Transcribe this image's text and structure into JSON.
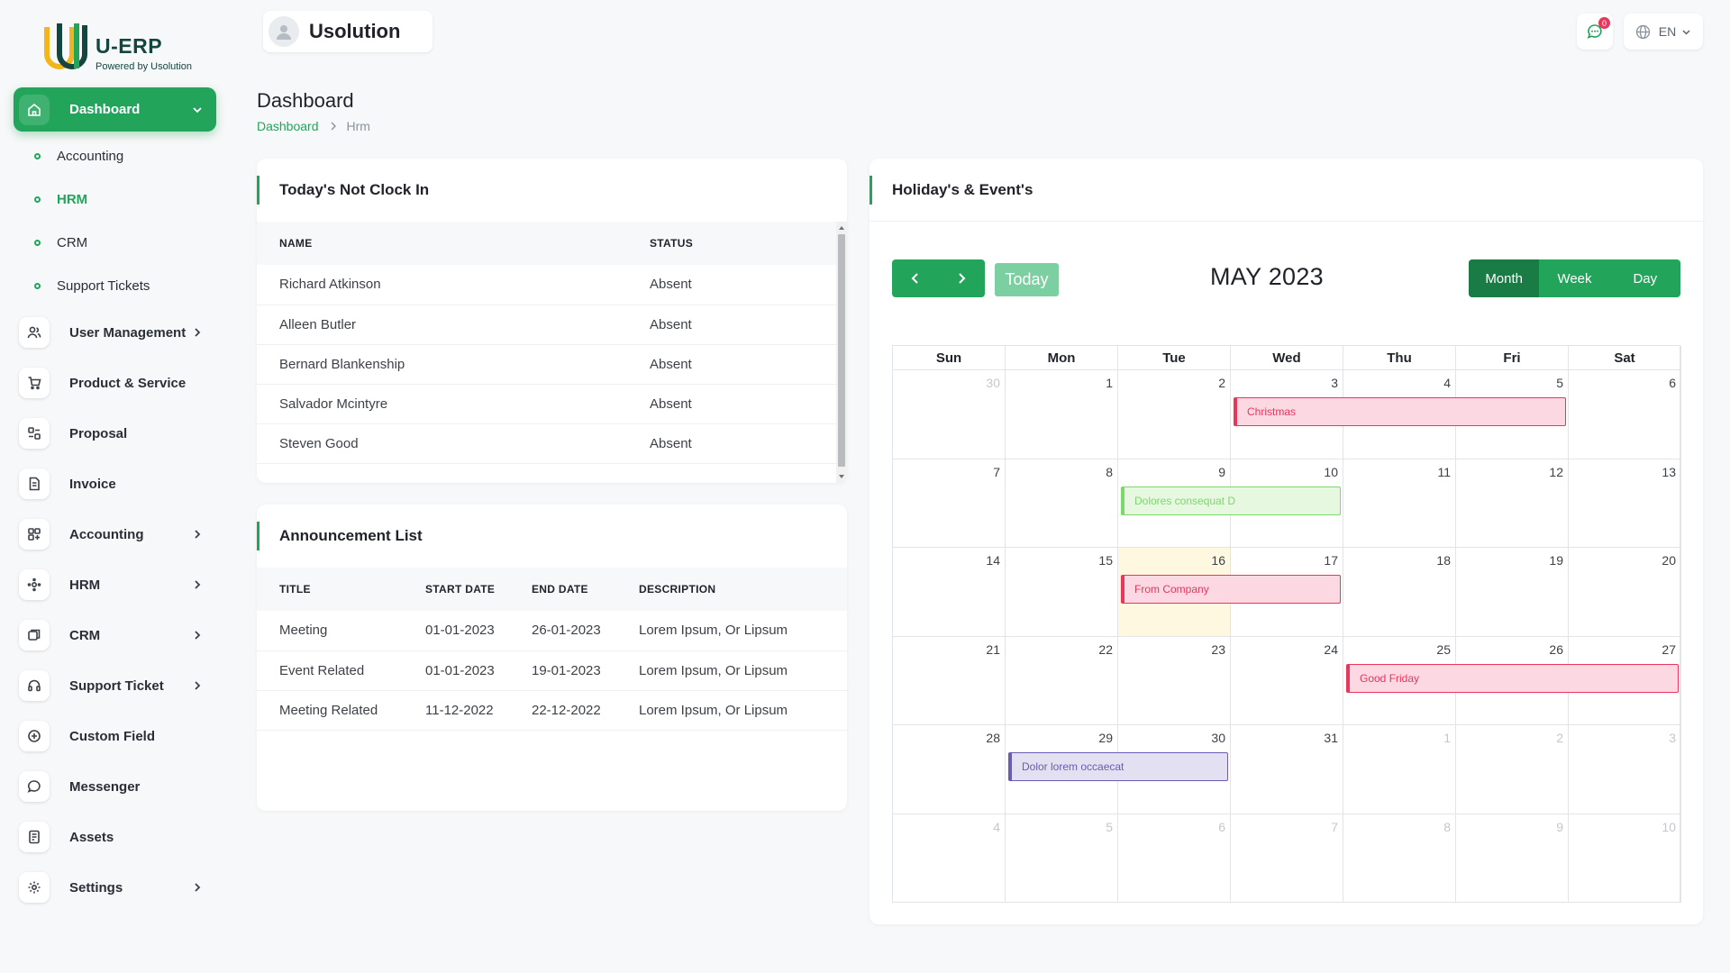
{
  "brand": {
    "title": "U-ERP",
    "subtitle": "Powered by Usolution"
  },
  "sidebar": {
    "dashboard": "Dashboard",
    "sub_items": [
      "Accounting",
      "HRM",
      "CRM",
      "Support Tickets"
    ],
    "items": [
      {
        "label": "User Management",
        "icon": "users-icon",
        "chevron": true
      },
      {
        "label": "Product & Service",
        "icon": "cart-icon",
        "chevron": false
      },
      {
        "label": "Proposal",
        "icon": "proposal-icon",
        "chevron": false
      },
      {
        "label": "Invoice",
        "icon": "invoice-icon",
        "chevron": false
      },
      {
        "label": "Accounting",
        "icon": "accounting-icon",
        "chevron": true
      },
      {
        "label": "HRM",
        "icon": "hrm-icon",
        "chevron": true
      },
      {
        "label": "CRM",
        "icon": "crm-icon",
        "chevron": true
      },
      {
        "label": "Support Ticket",
        "icon": "headset-icon",
        "chevron": true
      },
      {
        "label": "Custom Field",
        "icon": "plus-circle-icon",
        "chevron": false
      },
      {
        "label": "Messenger",
        "icon": "chat-icon",
        "chevron": false
      },
      {
        "label": "Assets",
        "icon": "assets-icon",
        "chevron": false
      },
      {
        "label": "Settings",
        "icon": "gear-icon",
        "chevron": true
      }
    ]
  },
  "header": {
    "company": "Usolution",
    "notifications": "0",
    "language": "EN"
  },
  "page": {
    "title": "Dashboard",
    "breadcrumb": [
      "Dashboard",
      "Hrm"
    ]
  },
  "clock_in": {
    "title": "Today's Not Clock In",
    "columns": [
      "NAME",
      "STATUS"
    ],
    "rows": [
      [
        "Richard Atkinson",
        "Absent"
      ],
      [
        "Alleen Butler",
        "Absent"
      ],
      [
        "Bernard Blankenship",
        "Absent"
      ],
      [
        "Salvador Mcintyre",
        "Absent"
      ],
      [
        "Steven Good",
        "Absent"
      ]
    ]
  },
  "announcements": {
    "title": "Announcement List",
    "columns": [
      "TITLE",
      "START DATE",
      "END DATE",
      "DESCRIPTION"
    ],
    "rows": [
      [
        "Meeting",
        "01-01-2023",
        "26-01-2023",
        "Lorem Ipsum, Or Lipsum"
      ],
      [
        "Event Related",
        "01-01-2023",
        "19-01-2023",
        "Lorem Ipsum, Or Lipsum"
      ],
      [
        "Meeting Related",
        "11-12-2022",
        "22-12-2022",
        "Lorem Ipsum, Or Lipsum"
      ]
    ]
  },
  "calendar": {
    "title": "Holiday's & Event's",
    "today_label": "Today",
    "month_title": "MAY 2023",
    "views": [
      "Month",
      "Week",
      "Day"
    ],
    "active_view": "Month",
    "weekdays": [
      "Sun",
      "Mon",
      "Tue",
      "Wed",
      "Thu",
      "Fri",
      "Sat"
    ],
    "weeks": [
      [
        30,
        1,
        2,
        3,
        4,
        5,
        6
      ],
      [
        7,
        8,
        9,
        10,
        11,
        12,
        13
      ],
      [
        14,
        15,
        16,
        17,
        18,
        19,
        20
      ],
      [
        21,
        22,
        23,
        24,
        25,
        26,
        27
      ],
      [
        28,
        29,
        30,
        31,
        1,
        2,
        3
      ],
      [
        4,
        5,
        6,
        7,
        8,
        9,
        10
      ]
    ],
    "today_date": "2023-05-16",
    "events": [
      {
        "title": "Christmas",
        "start": "2023-05-03",
        "end": "2023-05-05",
        "color": "#e8365d",
        "bg": "#fcd9e2"
      },
      {
        "title": "Dolores consequat D",
        "start": "2023-05-09",
        "end": "2023-05-10",
        "color": "#7bd86a",
        "bg": "#e6f8df"
      },
      {
        "title": "From Company",
        "start": "2023-05-16",
        "end": "2023-05-17",
        "color": "#e8365d",
        "bg": "#fcd9e2"
      },
      {
        "title": "Good Friday",
        "start": "2023-05-25",
        "end": "2023-05-27",
        "color": "#e8365d",
        "bg": "#fcd9e2"
      },
      {
        "title": "Dolor lorem occaecat",
        "start": "2023-05-29",
        "end": "2023-05-30",
        "color": "#6a5bb5",
        "bg": "#e3e0f2"
      }
    ]
  },
  "colors": {
    "accent": "#22a55b",
    "accent_dark": "#1a7c45"
  }
}
